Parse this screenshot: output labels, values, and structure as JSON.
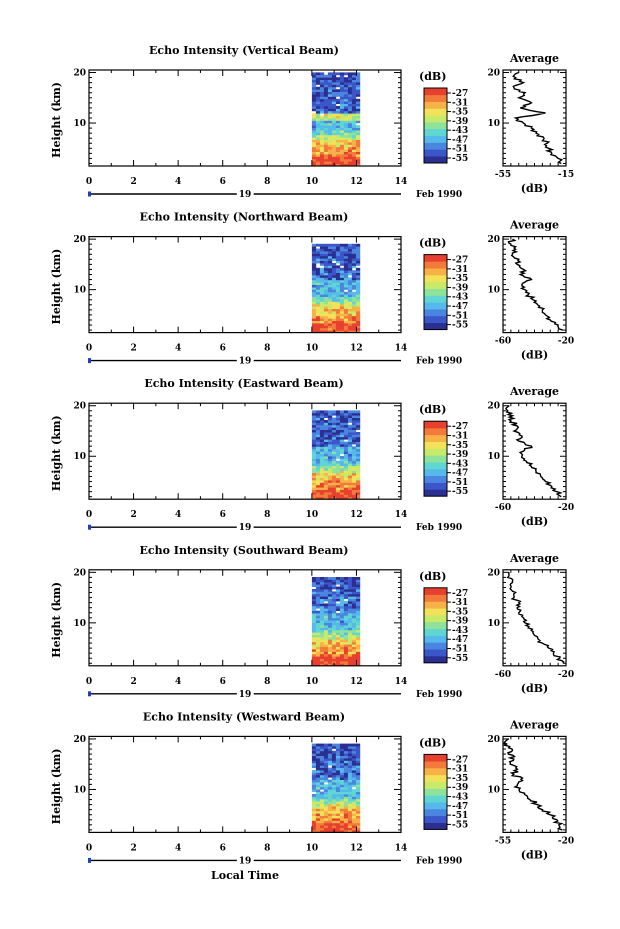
{
  "figure": {
    "x_label": "Local Time",
    "date_label": "Feb 1990",
    "day_label": "19"
  },
  "colorbar": {
    "unit": "(dB)",
    "ticks": [
      "-27",
      "-31",
      "-35",
      "-39",
      "-43",
      "-47",
      "-51",
      "-55"
    ],
    "colors": [
      "#2b2f8f",
      "#3a56c8",
      "#4a86e0",
      "#56b9ec",
      "#5fd6d2",
      "#8ee29a",
      "#c8ea6a",
      "#f2e25a",
      "#f6b246",
      "#f27a3a",
      "#e8402e"
    ]
  },
  "chart_data": [
    {
      "type": "heatmap",
      "title": "Echo Intensity (Vertical Beam)",
      "ylabel": "Height (km)",
      "xlabel": "Local Time",
      "x_ticks": [
        "0",
        "2",
        "4",
        "6",
        "8",
        "10",
        "12",
        "14"
      ],
      "y_ticks": [
        "20",
        "10"
      ],
      "xlim": [
        0,
        14
      ],
      "ylim": [
        1.5,
        20.5
      ],
      "data_x_range": [
        10,
        12
      ],
      "profile": {
        "title": "Average",
        "xlabel": "(dB)",
        "xticks": [
          "-55",
          "-15"
        ],
        "xlim": [
          -55,
          -15
        ],
        "heights": [
          2,
          3,
          4,
          5,
          6,
          7,
          8,
          9,
          10,
          11,
          12,
          13,
          14,
          15,
          16,
          17,
          18,
          19,
          20
        ],
        "values": [
          -18,
          -20,
          -24,
          -26,
          -27,
          -29,
          -34,
          -37,
          -42,
          -47,
          -28,
          -44,
          -37,
          -45,
          -41,
          -48,
          -42,
          -47,
          -45
        ]
      }
    },
    {
      "type": "heatmap",
      "title": "Echo Intensity (Northward Beam)",
      "ylabel": "Height (km)",
      "xlabel": "Local Time",
      "x_ticks": [
        "0",
        "2",
        "4",
        "6",
        "8",
        "10",
        "12",
        "14"
      ],
      "y_ticks": [
        "20",
        "10"
      ],
      "xlim": [
        0,
        14
      ],
      "ylim": [
        1.5,
        20.5
      ],
      "data_x_range": [
        10,
        12
      ],
      "profile": {
        "title": "Average",
        "xlabel": "(dB)",
        "xticks": [
          "-60",
          "-20"
        ],
        "xlim": [
          -60,
          -20
        ],
        "heights": [
          2,
          3,
          4,
          5,
          6,
          7,
          8,
          9,
          10,
          11,
          12,
          13,
          14,
          15,
          16,
          17,
          18,
          19,
          20
        ],
        "values": [
          -22,
          -25,
          -30,
          -33,
          -35,
          -38,
          -41,
          -44,
          -46,
          -48,
          -42,
          -49,
          -47,
          -51,
          -50,
          -54,
          -52,
          -55,
          -54
        ]
      }
    },
    {
      "type": "heatmap",
      "title": "Echo Intensity (Eastward Beam)",
      "ylabel": "Height (km)",
      "xlabel": "Local Time",
      "x_ticks": [
        "0",
        "2",
        "4",
        "6",
        "8",
        "10",
        "12",
        "14"
      ],
      "y_ticks": [
        "20",
        "10"
      ],
      "xlim": [
        0,
        14
      ],
      "ylim": [
        1.5,
        20.5
      ],
      "data_x_range": [
        10,
        12
      ],
      "profile": {
        "title": "Average",
        "xlabel": "(dB)",
        "xticks": [
          "-60",
          "-20"
        ],
        "xlim": [
          -60,
          -20
        ],
        "heights": [
          2,
          3,
          4,
          5,
          6,
          7,
          8,
          9,
          10,
          11,
          12,
          13,
          14,
          15,
          16,
          17,
          18,
          19,
          20
        ],
        "values": [
          -23,
          -26,
          -29,
          -33,
          -36,
          -39,
          -42,
          -45,
          -48,
          -47,
          -42,
          -50,
          -48,
          -53,
          -51,
          -55,
          -54,
          -57,
          -56
        ]
      }
    },
    {
      "type": "heatmap",
      "title": "Echo Intensity (Southward Beam)",
      "ylabel": "Height (km)",
      "xlabel": "Local Time",
      "x_ticks": [
        "0",
        "2",
        "4",
        "6",
        "8",
        "10",
        "12",
        "14"
      ],
      "y_ticks": [
        "20",
        "10"
      ],
      "xlim": [
        0,
        14
      ],
      "ylim": [
        1.5,
        20.5
      ],
      "data_x_range": [
        10,
        12
      ],
      "profile": {
        "title": "Average",
        "xlabel": "(dB)",
        "xticks": [
          "-60",
          "-20"
        ],
        "xlim": [
          -60,
          -20
        ],
        "heights": [
          2,
          3,
          4,
          5,
          6,
          7,
          8,
          9,
          10,
          11,
          12,
          13,
          14,
          15,
          16,
          17,
          18,
          19,
          20
        ],
        "values": [
          -22,
          -24,
          -28,
          -31,
          -35,
          -38,
          -41,
          -44,
          -46,
          -47,
          -50,
          -51,
          -50,
          -53,
          -52,
          -55,
          -54,
          -57,
          -56
        ]
      }
    },
    {
      "type": "heatmap",
      "title": "Echo Intensity (Westward Beam)",
      "ylabel": "Height (km)",
      "xlabel": "Local Time",
      "x_ticks": [
        "0",
        "2",
        "4",
        "6",
        "8",
        "10",
        "12",
        "14"
      ],
      "y_ticks": [
        "20",
        "10"
      ],
      "xlim": [
        0,
        14
      ],
      "ylim": [
        1.5,
        20.5
      ],
      "data_x_range": [
        10,
        12
      ],
      "profile": {
        "title": "Average",
        "xlabel": "(dB)",
        "xticks": [
          "-55",
          "-20"
        ],
        "xlim": [
          -55,
          -20
        ],
        "heights": [
          2,
          3,
          4,
          5,
          6,
          7,
          8,
          9,
          10,
          11,
          12,
          13,
          14,
          15,
          16,
          17,
          18,
          19,
          20
        ],
        "values": [
          -22,
          -24,
          -25,
          -29,
          -33,
          -36,
          -40,
          -43,
          -46,
          -47,
          -45,
          -49,
          -47,
          -51,
          -49,
          -52,
          -50,
          -53,
          -52
        ]
      }
    }
  ]
}
